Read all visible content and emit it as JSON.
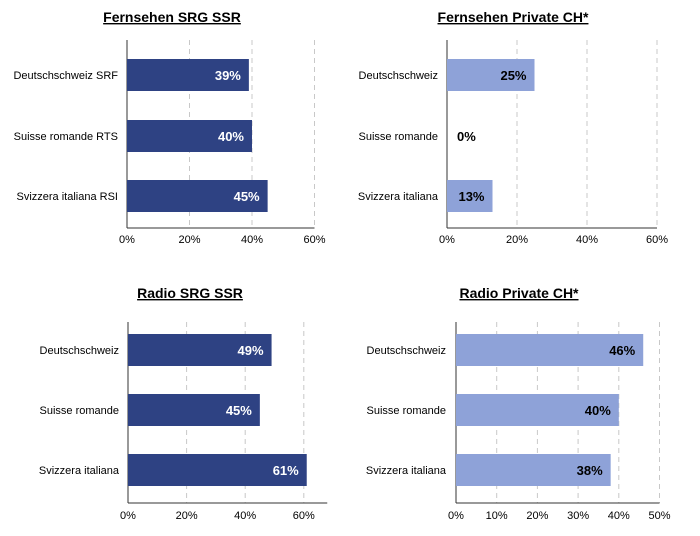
{
  "colors": {
    "srg": "#2E4283",
    "private": "#8EA2D8",
    "grid": "#C8C8C8",
    "axis": "#333333"
  },
  "chart_data": [
    {
      "type": "bar",
      "orientation": "horizontal",
      "title": "Fernsehen SRG SSR",
      "categories": [
        "Deutschschweiz SRF",
        "Suisse romande RTS",
        "Svizzera italiana RSI"
      ],
      "values": [
        39,
        40,
        45
      ],
      "data_labels": [
        "39%",
        "40%",
        "45%"
      ],
      "xticks": [
        "0%",
        "20%",
        "40%",
        "60%"
      ],
      "xlim": [
        0,
        60
      ],
      "tick_step": 20,
      "grid": "vertical-dashed",
      "color": "srg",
      "label_color": "#ffffff"
    },
    {
      "type": "bar",
      "orientation": "horizontal",
      "title": "Fernsehen Private CH*",
      "categories": [
        "Deutschschweiz",
        "Suisse romande",
        "Svizzera italiana"
      ],
      "values": [
        25,
        0,
        13
      ],
      "data_labels": [
        "25%",
        "0%",
        "13%"
      ],
      "xticks": [
        "0%",
        "20%",
        "40%",
        "60%"
      ],
      "xlim": [
        0,
        60
      ],
      "tick_step": 20,
      "grid": "vertical-dashed",
      "color": "private",
      "label_color": "#000000"
    },
    {
      "type": "bar",
      "orientation": "horizontal",
      "title": "Radio SRG SSR",
      "categories": [
        "Deutschschweiz",
        "Suisse romande",
        "Svizzera italiana"
      ],
      "values": [
        49,
        45,
        61
      ],
      "data_labels": [
        "49%",
        "45%",
        "61%"
      ],
      "xticks": [
        "0%",
        "20%",
        "40%",
        "60%"
      ],
      "xlim": [
        0,
        68
      ],
      "tick_step": 20,
      "grid": "vertical-dashed",
      "color": "srg",
      "label_color": "#ffffff"
    },
    {
      "type": "bar",
      "orientation": "horizontal",
      "title": "Radio Private CH*",
      "categories": [
        "Deutschschweiz",
        "Suisse romande",
        "Svizzera italiana"
      ],
      "values": [
        46,
        40,
        38
      ],
      "data_labels": [
        "46%",
        "40%",
        "38%"
      ],
      "xticks": [
        "0%",
        "10%",
        "20%",
        "30%",
        "40%",
        "50%"
      ],
      "xlim": [
        0,
        50
      ],
      "tick_step": 10,
      "grid": "vertical-dashed",
      "color": "private",
      "label_color": "#000000"
    }
  ]
}
